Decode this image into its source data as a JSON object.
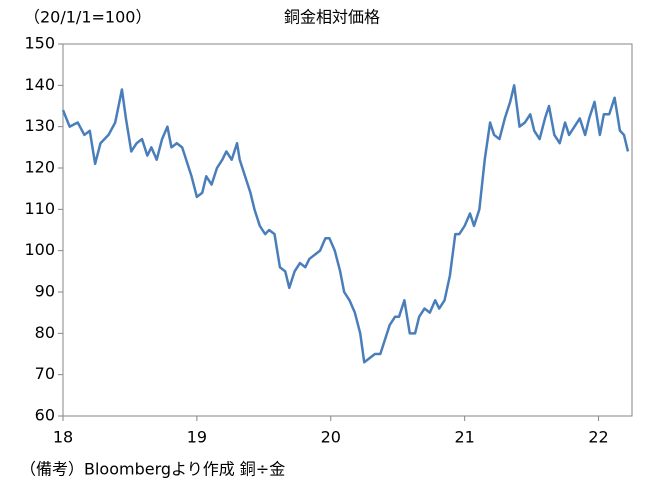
{
  "chart_data": {
    "type": "line",
    "title": "銅金相対価格",
    "y_label": "（20/1/1=100）",
    "note": "（備考）Bloombergより作成  銅÷金",
    "xlim": [
      18,
      22.25
    ],
    "xticks": [
      18,
      19,
      20,
      21,
      22
    ],
    "ylim": [
      60,
      150
    ],
    "yticks": [
      60,
      70,
      80,
      90,
      100,
      110,
      120,
      130,
      140,
      150
    ],
    "series": [
      {
        "color": "#4a7ebb",
        "x": [
          18.0,
          18.05,
          18.11,
          18.16,
          18.2,
          18.24,
          18.28,
          18.34,
          18.39,
          18.44,
          18.47,
          18.51,
          18.55,
          18.59,
          18.63,
          18.66,
          18.7,
          18.74,
          18.78,
          18.81,
          18.85,
          18.89,
          18.93,
          18.96,
          19.0,
          19.04,
          19.07,
          19.11,
          19.15,
          19.19,
          19.22,
          19.26,
          19.3,
          19.32,
          19.36,
          19.4,
          19.43,
          19.47,
          19.51,
          19.54,
          19.58,
          19.62,
          19.66,
          19.69,
          19.73,
          19.77,
          19.81,
          19.84,
          19.88,
          19.92,
          19.96,
          19.99,
          20.03,
          20.07,
          20.1,
          20.14,
          20.18,
          20.22,
          20.25,
          20.29,
          20.33,
          20.37,
          20.4,
          20.44,
          20.48,
          20.51,
          20.55,
          20.59,
          20.63,
          20.66,
          20.7,
          20.74,
          20.78,
          20.81,
          20.85,
          20.89,
          20.93,
          20.96,
          21.0,
          21.04,
          21.07,
          21.11,
          21.15,
          21.19,
          21.22,
          21.26,
          21.3,
          21.34,
          21.37,
          21.41,
          21.45,
          21.49,
          21.52,
          21.56,
          21.6,
          21.63,
          21.67,
          21.71,
          21.75,
          21.78,
          21.82,
          21.86,
          21.9,
          21.93,
          21.97,
          22.01,
          22.04,
          22.08,
          22.12,
          22.16,
          22.19,
          22.22
        ],
        "values": [
          134,
          130,
          131,
          128,
          129,
          121,
          126,
          128,
          131,
          139,
          132,
          124,
          126,
          127,
          123,
          125,
          122,
          127,
          130,
          125,
          126,
          125,
          121,
          118,
          113,
          114,
          118,
          116,
          120,
          122,
          124,
          122,
          126,
          122,
          118,
          114,
          110,
          106,
          104,
          105,
          104,
          96,
          95,
          91,
          95,
          97,
          96,
          98,
          99,
          100,
          103,
          103,
          100,
          95,
          90,
          88,
          85,
          80,
          73,
          74,
          75,
          75,
          78,
          82,
          84,
          84,
          88,
          80,
          80,
          84,
          86,
          85,
          88,
          86,
          88,
          94,
          104,
          104,
          106,
          109,
          106,
          110,
          122,
          131,
          128,
          127,
          132,
          136,
          140,
          130,
          131,
          133,
          129,
          127,
          132,
          135,
          128,
          126,
          131,
          128,
          130,
          132,
          128,
          132,
          136,
          128,
          133,
          133,
          137,
          129,
          128,
          124
        ]
      }
    ]
  }
}
